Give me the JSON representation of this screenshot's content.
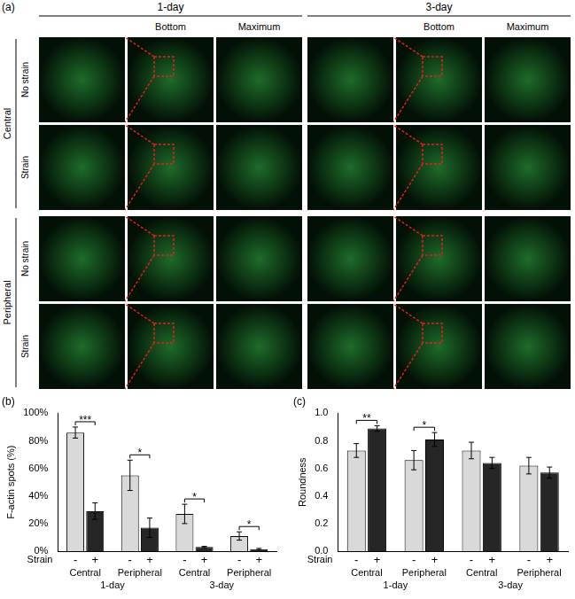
{
  "panel_a": {
    "label": "(a)",
    "days": [
      "1-day",
      "3-day"
    ],
    "columns": [
      "Bottom",
      "Maximum"
    ],
    "regions": [
      "Central",
      "Peripheral"
    ],
    "conditions": [
      "No strain",
      "Strain"
    ]
  },
  "chart_data": [
    {
      "type": "bar",
      "title": "(b)",
      "y_label": "F-actin spots (%)",
      "categories": [
        "Central",
        "Peripheral",
        "Central",
        "Peripheral"
      ],
      "groups": [
        "1-day",
        "1-day",
        "3-day",
        "3-day"
      ],
      "series_label": "Strain",
      "series": [
        {
          "name": "-",
          "color": "#d9d9d9",
          "values": [
            86,
            55,
            27,
            11
          ],
          "errors": [
            4,
            11,
            7,
            3
          ]
        },
        {
          "name": "+",
          "color": "#262626",
          "values": [
            29,
            17,
            3,
            1.5
          ],
          "errors": [
            6,
            7,
            0.5,
            0.5
          ]
        }
      ],
      "significance": [
        "***",
        "*",
        "*",
        "*"
      ],
      "ylim": [
        0,
        100
      ],
      "yticks": [
        {
          "value": 0,
          "label": "0%"
        },
        {
          "value": 20,
          "label": "20%"
        },
        {
          "value": 40,
          "label": "40%"
        },
        {
          "value": 60,
          "label": "60%"
        },
        {
          "value": 80,
          "label": "80%"
        },
        {
          "value": 100,
          "label": "100%"
        }
      ],
      "grid": false
    },
    {
      "type": "bar",
      "title": "(c)",
      "y_label": "Roundness",
      "categories": [
        "Central",
        "Peripheral",
        "Central",
        "Peripheral"
      ],
      "groups": [
        "1-day",
        "1-day",
        "3-day",
        "3-day"
      ],
      "series_label": "Strain",
      "series": [
        {
          "name": "-",
          "color": "#d9d9d9",
          "values": [
            0.73,
            0.66,
            0.73,
            0.62
          ],
          "errors": [
            0.05,
            0.07,
            0.06,
            0.06
          ]
        },
        {
          "name": "+",
          "color": "#262626",
          "values": [
            0.89,
            0.81,
            0.64,
            0.57
          ],
          "errors": [
            0.02,
            0.05,
            0.04,
            0.04
          ]
        }
      ],
      "significance": [
        "**",
        "*",
        null,
        null
      ],
      "ylim": [
        0,
        1
      ],
      "yticks": [
        {
          "value": 0,
          "label": "0.0"
        },
        {
          "value": 0.2,
          "label": "0.2"
        },
        {
          "value": 0.4,
          "label": "0.4"
        },
        {
          "value": 0.6,
          "label": "0.6"
        },
        {
          "value": 0.8,
          "label": "0.8"
        },
        {
          "value": 1,
          "label": "1.0"
        }
      ],
      "grid": false
    }
  ]
}
